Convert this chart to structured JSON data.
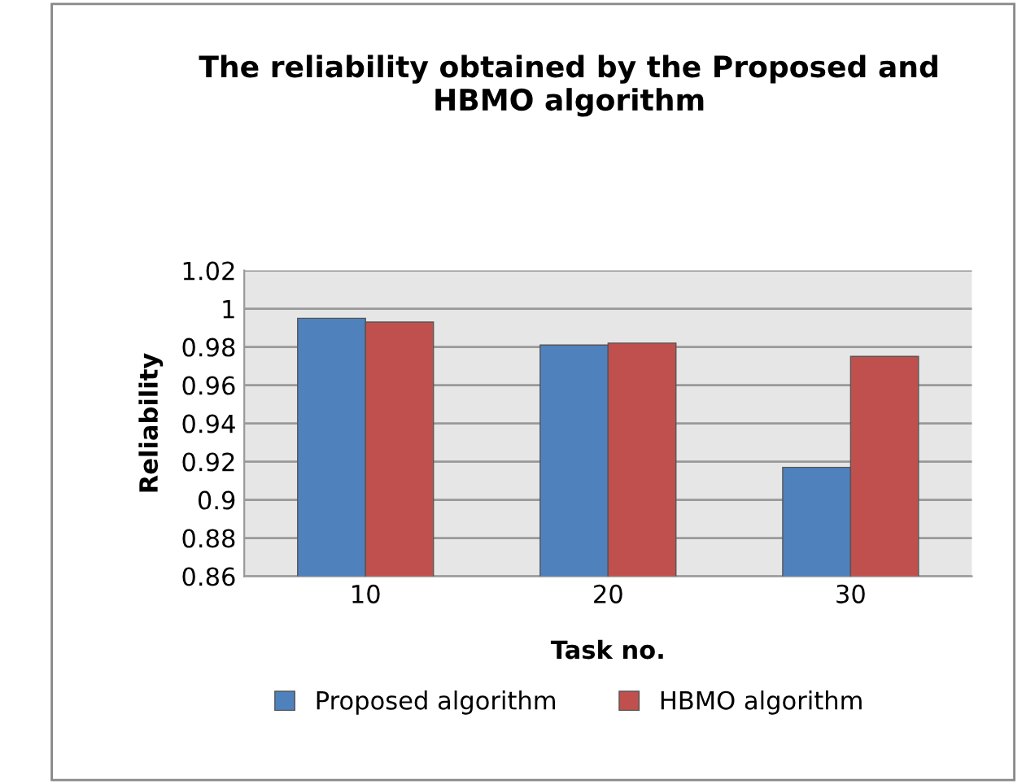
{
  "chart_data": {
    "type": "bar",
    "title": "The reliability obtained by the Proposed and\nHBMO algorithm",
    "xlabel": "Task no.",
    "ylabel": "Reliability",
    "categories": [
      "10",
      "20",
      "30"
    ],
    "series": [
      {
        "name": "Proposed algorithm",
        "color": "#4f81bd",
        "values": [
          0.995,
          0.981,
          0.917
        ]
      },
      {
        "name": "HBMO algorithm",
        "color": "#c0504d",
        "values": [
          0.993,
          0.982,
          0.975
        ]
      }
    ],
    "ylim": [
      0.86,
      1.02
    ],
    "yticks": [
      {
        "value": 0.86,
        "label": "0.86"
      },
      {
        "value": 0.88,
        "label": "0.88"
      },
      {
        "value": 0.9,
        "label": "0.9"
      },
      {
        "value": 0.92,
        "label": "0.92"
      },
      {
        "value": 0.94,
        "label": "0.94"
      },
      {
        "value": 0.96,
        "label": "0.96"
      },
      {
        "value": 0.98,
        "label": "0.98"
      },
      {
        "value": 1,
        "label": "1"
      },
      {
        "value": 1.02,
        "label": "1.02"
      }
    ],
    "grid": "y",
    "legend": "bottom"
  }
}
